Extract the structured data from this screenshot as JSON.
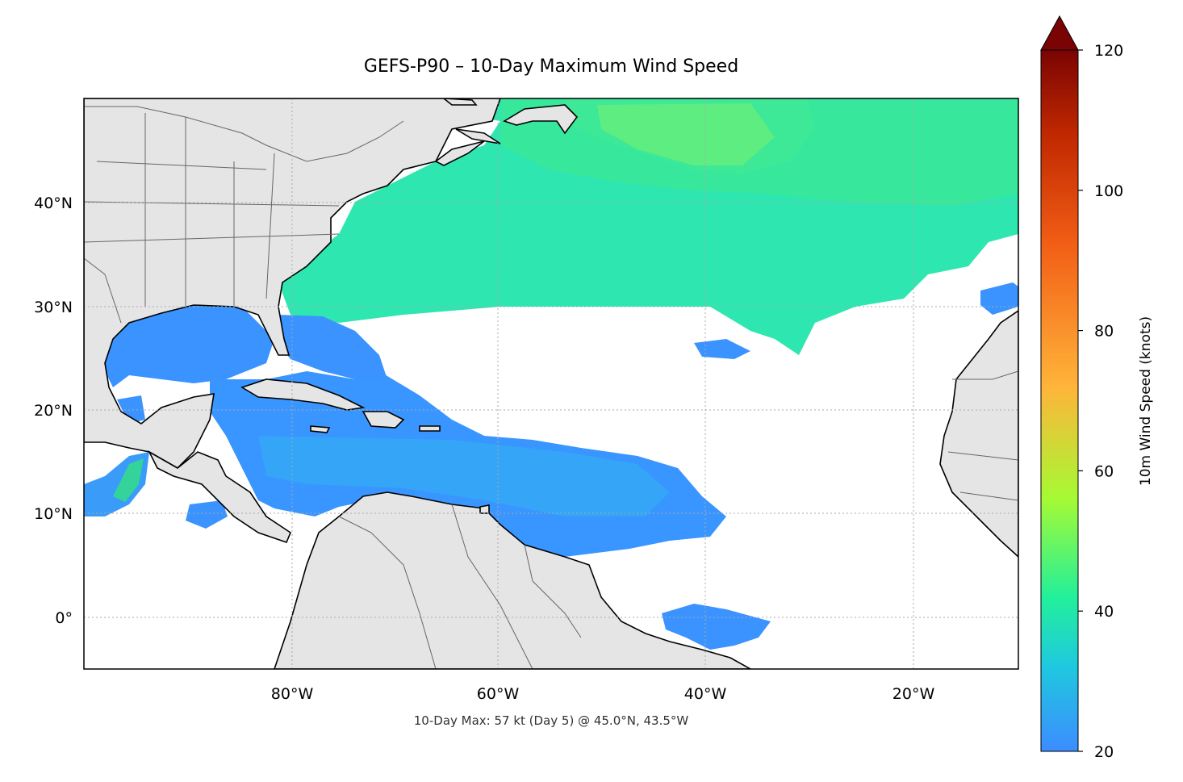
{
  "title": "GEFS-P90 – 10-Day Maximum Wind Speed",
  "footnote": "10-Day Max: 57 kt (Day 5) @ 45.0°N, 43.5°W",
  "map": {
    "lon_range": [
      -100,
      -10
    ],
    "lat_range": [
      -5,
      50
    ],
    "lon_ticks": [
      {
        "value": -80,
        "label": "80°W"
      },
      {
        "value": -60,
        "label": "60°W"
      },
      {
        "value": -40,
        "label": "40°W"
      },
      {
        "value": -20,
        "label": "20°W"
      }
    ],
    "lat_ticks": [
      {
        "value": 40,
        "label": "40°N"
      },
      {
        "value": 30,
        "label": "30°N"
      },
      {
        "value": 20,
        "label": "20°N"
      },
      {
        "value": 10,
        "label": "10°N"
      },
      {
        "value": 0,
        "label": "0°"
      }
    ],
    "gridlines": "dotted",
    "land_color": "#e5e5e5",
    "ocean_color": "#ffffff",
    "coast_color": "#000000"
  },
  "colorbar": {
    "label": "10m Wind Speed (knots)",
    "range": [
      20,
      120
    ],
    "ticks": [
      {
        "value": 20,
        "label": "20"
      },
      {
        "value": 40,
        "label": "40"
      },
      {
        "value": 60,
        "label": "60"
      },
      {
        "value": 80,
        "label": "80"
      },
      {
        "value": 100,
        "label": "100"
      },
      {
        "value": 120,
        "label": "120"
      }
    ],
    "extend": "max",
    "colors": [
      "#3d8cff",
      "#1fc8e0",
      "#22f09a",
      "#a5fa33",
      "#ffb43a",
      "#f25f16",
      "#c02800",
      "#7a0403"
    ]
  },
  "max_marker": {
    "speed_kt": 57,
    "day": 5,
    "lat": 45.0,
    "lon": -43.5
  }
}
